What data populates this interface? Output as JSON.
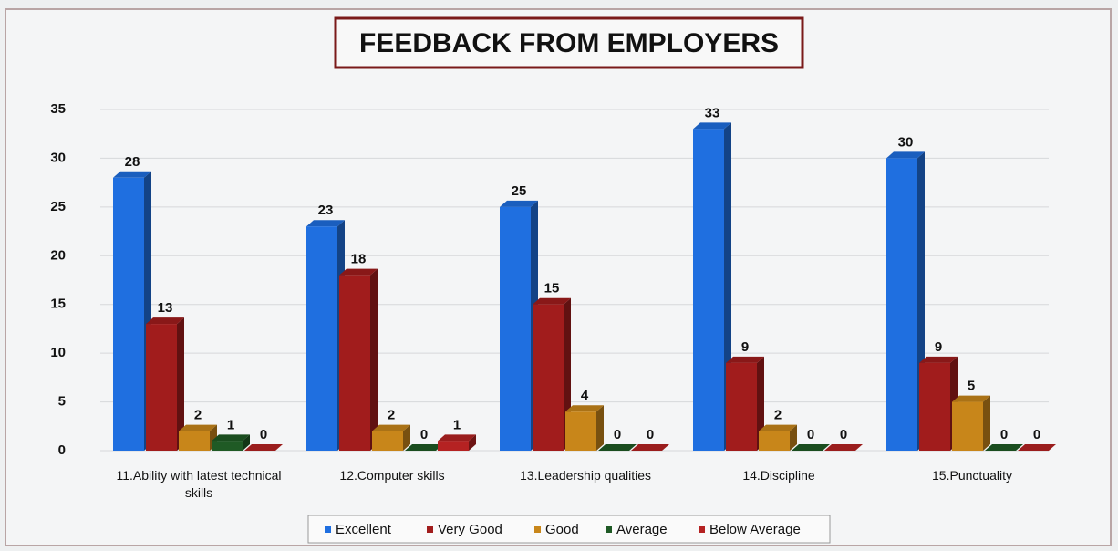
{
  "chart_data": {
    "type": "bar",
    "title": "FEEDBACK FROM EMPLOYERS",
    "categories": [
      "11.Ability with latest technical skills",
      "12.Computer skills",
      "13.Leadership qualities",
      "14.Discipline",
      "15.Punctuality"
    ],
    "series": [
      {
        "name": "Excellent",
        "color": "#1f6fe0",
        "values": [
          28,
          23,
          25,
          33,
          30
        ]
      },
      {
        "name": "Very Good",
        "color": "#a11c1c",
        "values": [
          13,
          18,
          15,
          9,
          9
        ]
      },
      {
        "name": "Good",
        "color": "#c8861a",
        "values": [
          2,
          2,
          4,
          2,
          5
        ]
      },
      {
        "name": "Average",
        "color": "#1f5a25",
        "values": [
          1,
          0,
          0,
          0,
          0
        ]
      },
      {
        "name": "Below Average",
        "color": "#b52222",
        "values": [
          0,
          1,
          0,
          0,
          0
        ]
      }
    ],
    "ylim": [
      0,
      35
    ],
    "yticks": [
      0,
      5,
      10,
      15,
      20,
      25,
      30,
      35
    ],
    "grid": true,
    "legend": "bottom"
  }
}
